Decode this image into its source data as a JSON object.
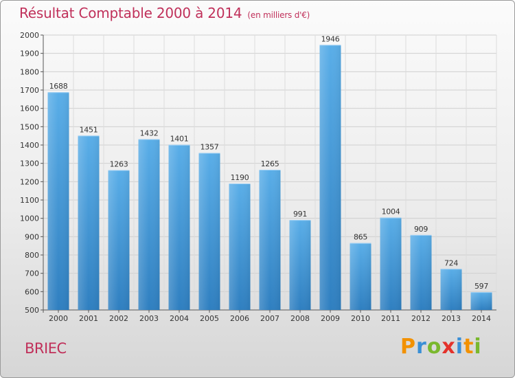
{
  "chart_data": {
    "type": "bar",
    "title": "Résultat Comptable 2000 à 2014",
    "subtitle": "(en milliers d'€)",
    "categories": [
      "2000",
      "2001",
      "2002",
      "2003",
      "2004",
      "2005",
      "2006",
      "2007",
      "2008",
      "2009",
      "2010",
      "2011",
      "2012",
      "2013",
      "2014"
    ],
    "values": [
      1688,
      1451,
      1263,
      1432,
      1401,
      1357,
      1190,
      1265,
      991,
      1946,
      865,
      1004,
      909,
      724,
      597
    ],
    "ylim": [
      500,
      2000
    ],
    "yticks": [
      500,
      600,
      700,
      800,
      900,
      1000,
      1100,
      1200,
      1300,
      1400,
      1500,
      1600,
      1700,
      1800,
      1900,
      2000
    ],
    "grid": true,
    "bar_color": "#4b9fdc"
  },
  "place_name": "BRIEC",
  "logo": {
    "text": "Proxiti",
    "colors": [
      "#f29100",
      "#3a8fd6",
      "#7ab82e",
      "#e4322b",
      "#3a8fd6",
      "#f29100",
      "#7ab82e"
    ]
  }
}
